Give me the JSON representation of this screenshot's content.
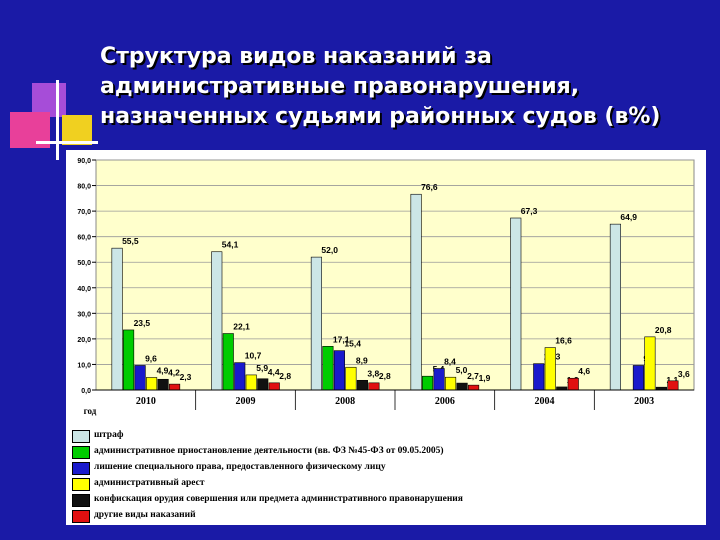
{
  "title": "Структура видов наказаний за\nадминистративные правонарушения,\nназначенных судьями районных судов (в%)",
  "chart_data": {
    "type": "bar",
    "x_axis_label": "год",
    "categories": [
      "2010",
      "2009",
      "2008",
      "2006",
      "2004",
      "2003"
    ],
    "ylim": [
      0,
      90
    ],
    "y_ticks": [
      "0,0",
      "10,0",
      "20,0",
      "30,0",
      "40,0",
      "50,0",
      "60,0",
      "70,0",
      "80,0",
      "90,0"
    ],
    "grid": true,
    "legend_position": "bottom",
    "plot_background": "#ffffcc",
    "series": [
      {
        "name": "штраф",
        "color": "#cce6e6",
        "values": [
          55.5,
          54.1,
          52.0,
          76.6,
          67.3,
          64.9
        ],
        "labels": [
          "55,5",
          "54,1",
          "52,0",
          "76,6",
          "67,3",
          "64,9"
        ]
      },
      {
        "name": "административное приостановление деятельности (вв. ФЗ №45-ФЗ от 09.05.2005)",
        "color": "#00cc00",
        "values": [
          23.5,
          22.1,
          17.1,
          5.4,
          0,
          0
        ],
        "labels": [
          "23,5",
          "22,1",
          "17,1",
          "5,4",
          "",
          ""
        ]
      },
      {
        "name": "лишение специального права, предоставленного физическому лицу",
        "color": "#1a1acc",
        "values": [
          9.6,
          10.7,
          15.4,
          8.4,
          10.3,
          9.6
        ],
        "labels": [
          "9,6",
          "10,7",
          "15,4",
          "8,4",
          "10,3",
          "9,6"
        ]
      },
      {
        "name": "административный арест",
        "color": "#ffff00",
        "values": [
          4.9,
          5.9,
          8.9,
          5.0,
          16.6,
          20.8
        ],
        "labels": [
          "4,9",
          "5,9",
          "8,9",
          "5,0",
          "16,6",
          "20,8"
        ]
      },
      {
        "name": "конфискация орудия совершения или предмета административного правонарушения",
        "color": "#111111",
        "values": [
          4.2,
          4.4,
          3.8,
          2.7,
          1.2,
          1.1
        ],
        "labels": [
          "4,2",
          "4,4",
          "3,8",
          "2,7",
          "1,2",
          "1,1"
        ]
      },
      {
        "name": "другие виды наказаний",
        "color": "#e01010",
        "values": [
          2.3,
          2.8,
          2.8,
          1.9,
          4.6,
          3.6
        ],
        "labels": [
          "2,3",
          "2,8",
          "2,8",
          "1,9",
          "4,6",
          "3,6"
        ]
      }
    ]
  }
}
